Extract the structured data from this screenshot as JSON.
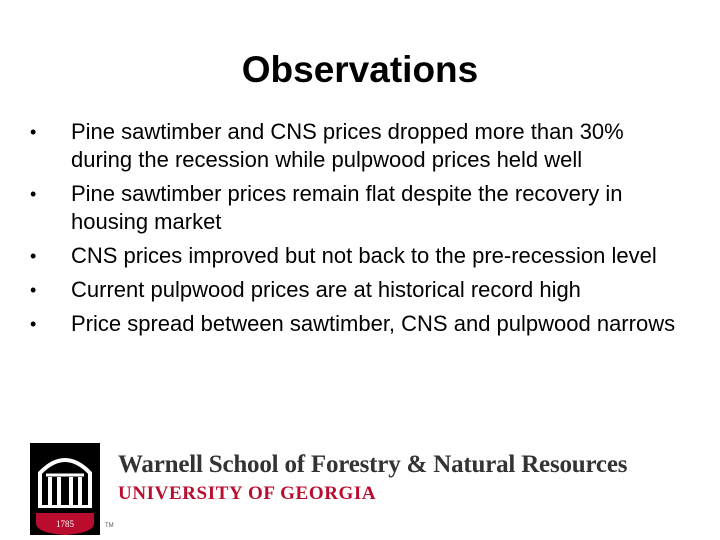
{
  "slide": {
    "title": "Observations",
    "bullets": [
      "Pine sawtimber and CNS prices dropped more than 30% during the recession while pulpwood prices held well",
      "Pine sawtimber prices remain flat despite the recovery in housing market",
      "CNS prices improved but not back to the pre-recession level",
      "Current pulpwood prices are at historical record high",
      "Price spread between sawtimber, CNS and pulpwood narrows"
    ],
    "bullet_symbol": "•"
  },
  "footer": {
    "school": "Warnell School of Forestry & Natural Resources",
    "university": "UNIVERSITY OF GEORGIA",
    "logo_year": "1785",
    "logo_mark": "TM",
    "colors": {
      "red": "#ba0c2f",
      "black": "#000000",
      "gray": "#333333"
    }
  }
}
